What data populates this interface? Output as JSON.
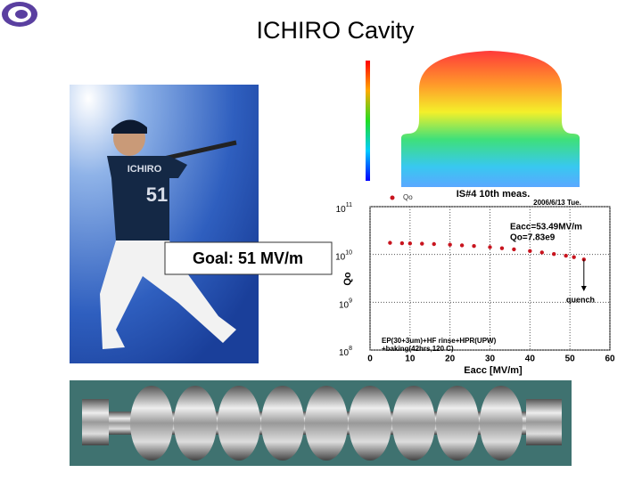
{
  "title": "ICHIRO Cavity",
  "goal_label": "Goal: 51 MV/m",
  "photo": {
    "jersey_name": "ICHIRO",
    "jersey_number": "51"
  },
  "chart_data": {
    "type": "scatter",
    "title": "IS#4 10th meas.",
    "x_label": "Eacc [MV/m]",
    "y_label": "Qo",
    "log_y": true,
    "grid": true,
    "xlim": [
      0,
      60
    ],
    "xticks": [
      0,
      10,
      20,
      30,
      40,
      50,
      60
    ],
    "ylim": [
      100000000,
      100000000000
    ],
    "yticks": [
      {
        "value": 100000000,
        "label": "10",
        "exponent": "8"
      },
      {
        "value": 1000000000,
        "label": "10",
        "exponent": "9"
      },
      {
        "value": 10000000000,
        "label": "10",
        "exponent": "10"
      },
      {
        "value": 100000000000,
        "label": "10",
        "exponent": "11"
      }
    ],
    "series": [
      {
        "name": "Qo",
        "color": "#c8141e",
        "x": [
          5,
          8,
          10,
          13,
          16,
          20,
          23,
          26,
          30,
          33,
          36,
          40,
          43,
          46,
          49,
          51,
          53.49
        ],
        "values": [
          17500000000,
          17200000000,
          17000000000,
          16800000000,
          16500000000,
          16000000000,
          15500000000,
          15000000000,
          14200000000,
          13500000000,
          12800000000,
          11800000000,
          11000000000,
          10200000000,
          9400000000,
          8800000000,
          7830000000
        ]
      }
    ],
    "annotations": [
      "2006/6/13 Tue.",
      "Eacc=53.49MV/m",
      "Qo=7.83e9",
      "quench",
      "EP(30+3um)+HF rinse+HPR(UPW)",
      "+baking(42hrs,120 C)"
    ]
  }
}
